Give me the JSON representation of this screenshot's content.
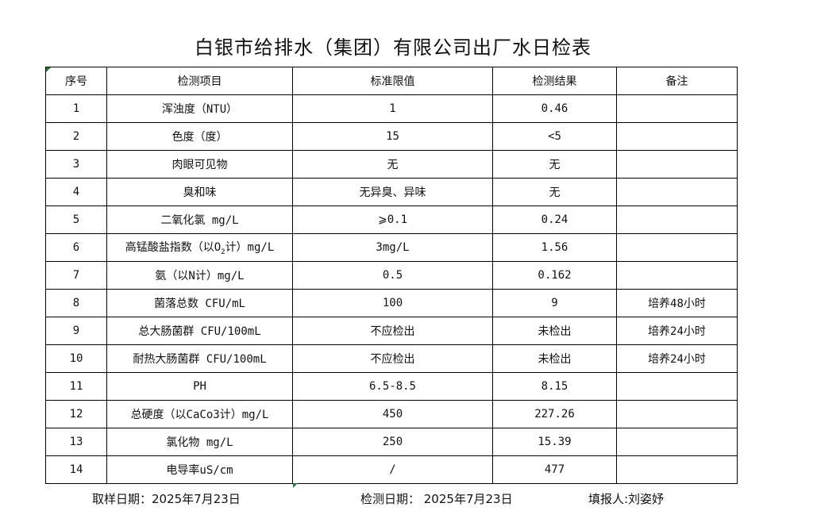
{
  "title": "白银市给排水（集团）有限公司出厂水日检表",
  "headers": [
    "序号",
    "检测项目",
    "标准限值",
    "检测结果",
    "备注"
  ],
  "rows": [
    {
      "no": "1",
      "item": "浑浊度（NTU）",
      "limit": "1",
      "result": "0.46",
      "note": ""
    },
    {
      "no": "2",
      "item": "色度（度）",
      "limit": "15",
      "result": "<5",
      "note": ""
    },
    {
      "no": "3",
      "item": "肉眼可见物",
      "limit": "无",
      "result": "无",
      "note": ""
    },
    {
      "no": "4",
      "item": "臭和味",
      "limit": "无异臭、异味",
      "result": "无",
      "note": ""
    },
    {
      "no": "5",
      "item": "二氧化氯 mg/L",
      "limit": "⩾0.1",
      "result": "0.24",
      "note": ""
    },
    {
      "no": "6",
      "item": "高锰酸盐指数（以O",
      "item_sub": "2",
      "item_tail": "计）mg/L",
      "limit": "3mg/L",
      "result": "1.56",
      "note": ""
    },
    {
      "no": "7",
      "item": "氨（以N计）mg/L",
      "limit": "0.5",
      "result": "0.162",
      "note": ""
    },
    {
      "no": "8",
      "item": "菌落总数 CFU/mL",
      "limit": "100",
      "result": "9",
      "note": "培养48小时"
    },
    {
      "no": "9",
      "item": "总大肠菌群 CFU/100mL",
      "limit": "不应检出",
      "result": "未检出",
      "note": "培养24小时"
    },
    {
      "no": "10",
      "item": "耐热大肠菌群 CFU/100mL",
      "limit": "不应检出",
      "result": "未检出",
      "note": "培养24小时"
    },
    {
      "no": "11",
      "item": "PH",
      "limit": "6.5-8.5",
      "result": "8.15",
      "note": ""
    },
    {
      "no": "12",
      "item": "总硬度（以CaCo3计）mg/L",
      "limit": "450",
      "result": "227.26",
      "note": ""
    },
    {
      "no": "13",
      "item": "氯化物 mg/L",
      "limit": "250",
      "result": "15.39",
      "note": ""
    },
    {
      "no": "14",
      "item": "电导率uS/cm",
      "limit": "/",
      "result": "477",
      "note": ""
    }
  ],
  "footer": {
    "sample_date": "取样日期：2025年7月23日",
    "test_date": "检测日期： 2025年7月23日",
    "reporter": "填报人:刘姿妤"
  }
}
